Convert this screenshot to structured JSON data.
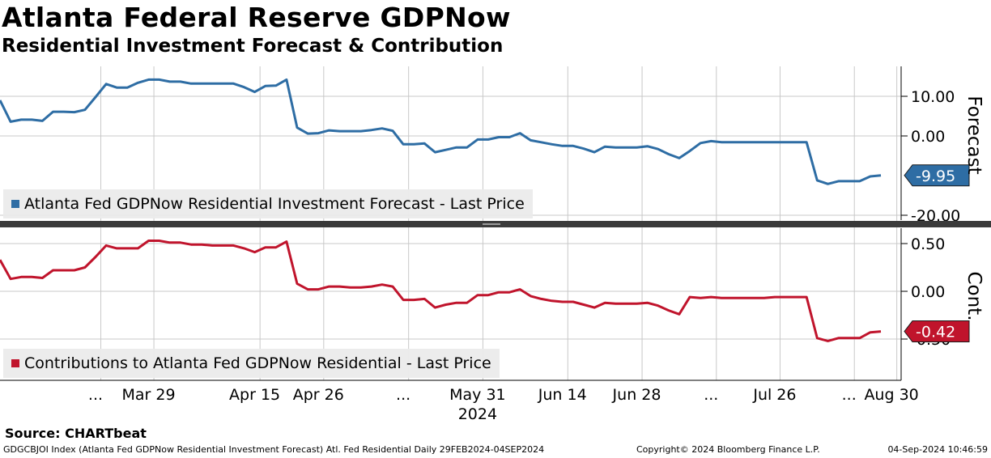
{
  "header": {
    "title": "Atlanta Federal Reserve GDPNow",
    "subtitle": "Residential Investment Forecast & Contribution"
  },
  "colors": {
    "forecast": "#2e6da4",
    "contribution": "#c0142c",
    "grid": "#bfbfbf"
  },
  "chart_data": [
    {
      "type": "line",
      "panel": "top",
      "ylabel": "Forecast",
      "ylim": [
        -20,
        20
      ],
      "yticks": [
        10,
        0,
        -20
      ],
      "ytick_labels": [
        "10.00",
        "0.00",
        "-20.00"
      ],
      "last_value": -9.95,
      "last_label": "-9.95",
      "series": [
        {
          "name": "Atlanta Fed GDPNow Residential Investment Forecast - Last Price",
          "values": [
            9.0,
            3.6,
            4.1,
            4.1,
            3.8,
            6.1,
            6.1,
            6.0,
            6.6,
            9.8,
            13.1,
            12.2,
            12.2,
            13.4,
            14.2,
            14.2,
            13.7,
            13.7,
            13.2,
            13.2,
            13.2,
            13.2,
            13.2,
            12.3,
            11.1,
            12.6,
            12.7,
            14.2,
            2.1,
            0.6,
            0.7,
            1.4,
            1.2,
            1.2,
            1.2,
            1.5,
            1.9,
            1.3,
            -2.1,
            -2.1,
            -1.9,
            -4.1,
            -3.5,
            -2.9,
            -2.9,
            -0.9,
            -0.9,
            -0.3,
            -0.3,
            0.7,
            -1.1,
            -1.6,
            -2.1,
            -2.5,
            -2.5,
            -3.2,
            -4.1,
            -2.7,
            -2.9,
            -2.9,
            -2.9,
            -2.6,
            -3.3,
            -4.6,
            -5.6,
            -3.8,
            -1.8,
            -1.3,
            -1.6,
            -1.6,
            -1.6,
            -1.6,
            -1.6,
            -1.6,
            -1.6,
            -1.6,
            -1.6,
            -11.2,
            -12.1,
            -11.4,
            -11.4,
            -11.4,
            -10.2,
            -9.95
          ]
        }
      ]
    },
    {
      "type": "line",
      "panel": "bottom",
      "ylabel": "Cont.",
      "ylim": [
        -0.75,
        0.6
      ],
      "yticks": [
        0.5,
        0,
        -0.5
      ],
      "ytick_labels": [
        "0.50",
        "0.00",
        "-0.50"
      ],
      "last_value": -0.42,
      "last_label": "-0.42",
      "series": [
        {
          "name": "Contributions to Atlanta Fed GDPNow Residential - Last Price",
          "values": [
            0.33,
            0.13,
            0.15,
            0.15,
            0.14,
            0.22,
            0.22,
            0.22,
            0.25,
            0.36,
            0.48,
            0.45,
            0.45,
            0.45,
            0.53,
            0.53,
            0.51,
            0.51,
            0.49,
            0.49,
            0.48,
            0.48,
            0.48,
            0.45,
            0.41,
            0.46,
            0.46,
            0.52,
            0.08,
            0.02,
            0.02,
            0.05,
            0.05,
            0.04,
            0.04,
            0.05,
            0.07,
            0.05,
            -0.09,
            -0.09,
            -0.08,
            -0.17,
            -0.14,
            -0.12,
            -0.12,
            -0.04,
            -0.04,
            -0.01,
            -0.01,
            0.02,
            -0.05,
            -0.08,
            -0.1,
            -0.11,
            -0.11,
            -0.14,
            -0.17,
            -0.12,
            -0.13,
            -0.13,
            -0.13,
            -0.12,
            -0.15,
            -0.2,
            -0.24,
            -0.06,
            -0.07,
            -0.06,
            -0.07,
            -0.07,
            -0.07,
            -0.07,
            -0.07,
            -0.06,
            -0.06,
            -0.06,
            -0.06,
            -0.49,
            -0.52,
            -0.49,
            -0.49,
            -0.49,
            -0.43,
            -0.42
          ]
        }
      ]
    }
  ],
  "x_axis": {
    "labels": [
      "...",
      "Mar 29",
      "Apr 15",
      "Apr 26",
      "...",
      "May 31",
      "Jun 14",
      "Jun 28",
      "...",
      "Jul 26",
      "...",
      "Aug 30"
    ],
    "label_index": [
      9,
      14,
      24,
      30,
      38,
      45,
      53,
      60,
      67,
      73,
      80,
      84
    ],
    "year": "2024"
  },
  "source": "Source: CHARTbeat",
  "footer": {
    "left": "GDGCBJOI Index (Atlanta Fed GDPNow Residential Investment Forecast) Atl. Fed Residential  Daily 29FEB2024-04SEP2024",
    "center": "Copyright© 2024 Bloomberg Finance L.P.",
    "right": "04-Sep-2024 10:46:59"
  }
}
